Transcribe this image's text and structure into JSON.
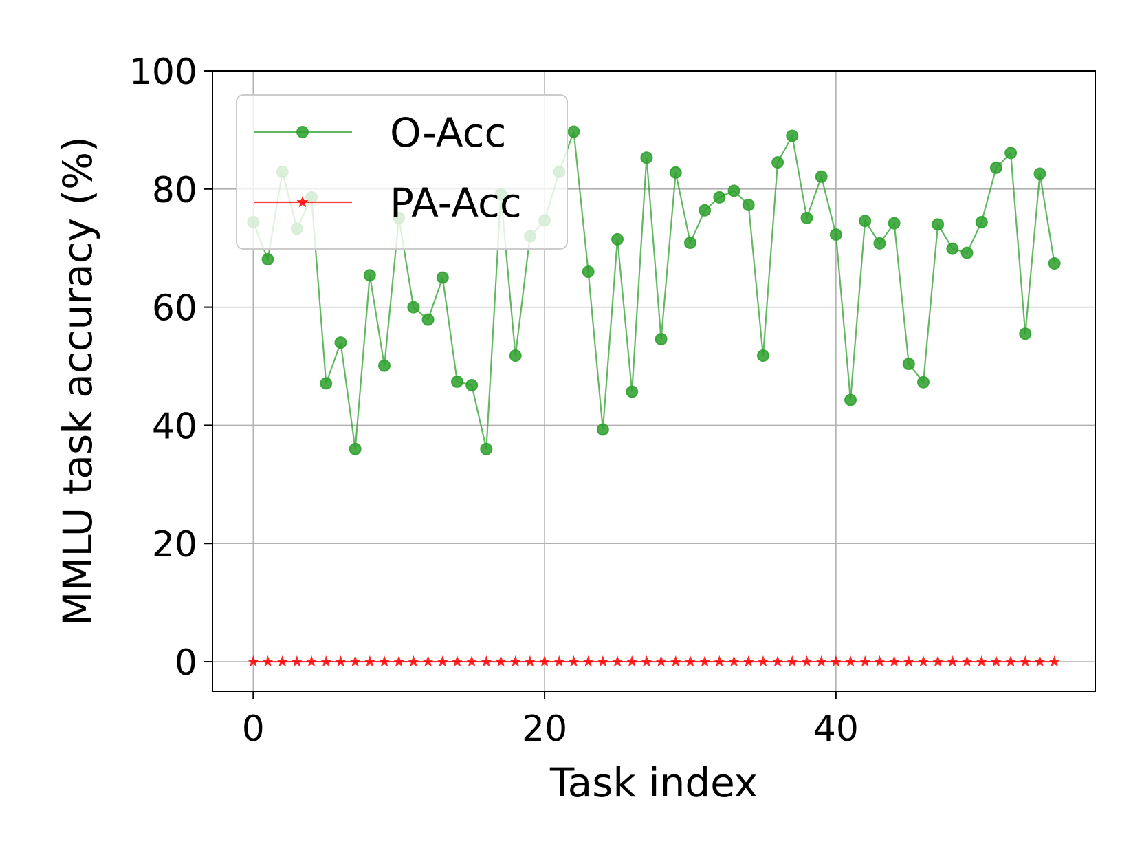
{
  "chart_data": {
    "type": "line",
    "xlabel": "Task index",
    "ylabel": "MMLU task accuracy (%)",
    "xlim": [
      -2.8,
      57.8
    ],
    "ylim": [
      -5,
      100
    ],
    "xticks": [
      "0",
      "20",
      "40"
    ],
    "xtick_values": [
      0,
      20,
      40
    ],
    "yticks": [
      "0",
      "20",
      "40",
      "60",
      "80",
      "100"
    ],
    "ytick_values": [
      0,
      20,
      40,
      60,
      80,
      100
    ],
    "grid": true,
    "legend_position": "upper-left",
    "x": [
      0,
      1,
      2,
      3,
      4,
      5,
      6,
      7,
      8,
      9,
      10,
      11,
      12,
      13,
      14,
      15,
      16,
      17,
      18,
      19,
      20,
      21,
      22,
      23,
      24,
      25,
      26,
      27,
      28,
      29,
      30,
      31,
      32,
      33,
      34,
      35,
      36,
      37,
      38,
      39,
      40,
      41,
      42,
      43,
      44,
      45,
      46,
      47,
      48,
      49,
      50,
      51,
      52,
      53,
      54,
      55
    ],
    "series": [
      {
        "name": "O-Acc",
        "color": "#2ca02c",
        "marker": "circle",
        "values": [
          74.4,
          68.1,
          82.9,
          73.3,
          78.6,
          47.1,
          54.0,
          36.0,
          65.4,
          50.1,
          75.1,
          60.0,
          57.9,
          65.0,
          47.4,
          46.8,
          36.0,
          79.1,
          51.8,
          72.0,
          74.7,
          82.9,
          89.7,
          66.0,
          39.3,
          71.5,
          45.7,
          85.3,
          54.6,
          82.8,
          70.9,
          76.4,
          78.6,
          79.7,
          77.3,
          51.8,
          84.5,
          89.0,
          75.1,
          82.1,
          72.3,
          44.3,
          74.6,
          70.8,
          74.2,
          50.4,
          47.3,
          74.0,
          69.9,
          69.2,
          74.4,
          83.6,
          86.1,
          55.5,
          82.6,
          67.4
        ]
      },
      {
        "name": "PA-Acc",
        "color": "#ff0000",
        "marker": "star",
        "values": [
          0,
          0,
          0,
          0,
          0,
          0,
          0,
          0,
          0,
          0,
          0,
          0,
          0,
          0,
          0,
          0,
          0,
          0,
          0,
          0,
          0,
          0,
          0,
          0,
          0,
          0,
          0,
          0,
          0,
          0,
          0,
          0,
          0,
          0,
          0,
          0,
          0,
          0,
          0,
          0,
          0,
          0,
          0,
          0,
          0,
          0,
          0,
          0,
          0,
          0,
          0,
          0,
          0,
          0,
          0,
          0
        ]
      }
    ]
  }
}
